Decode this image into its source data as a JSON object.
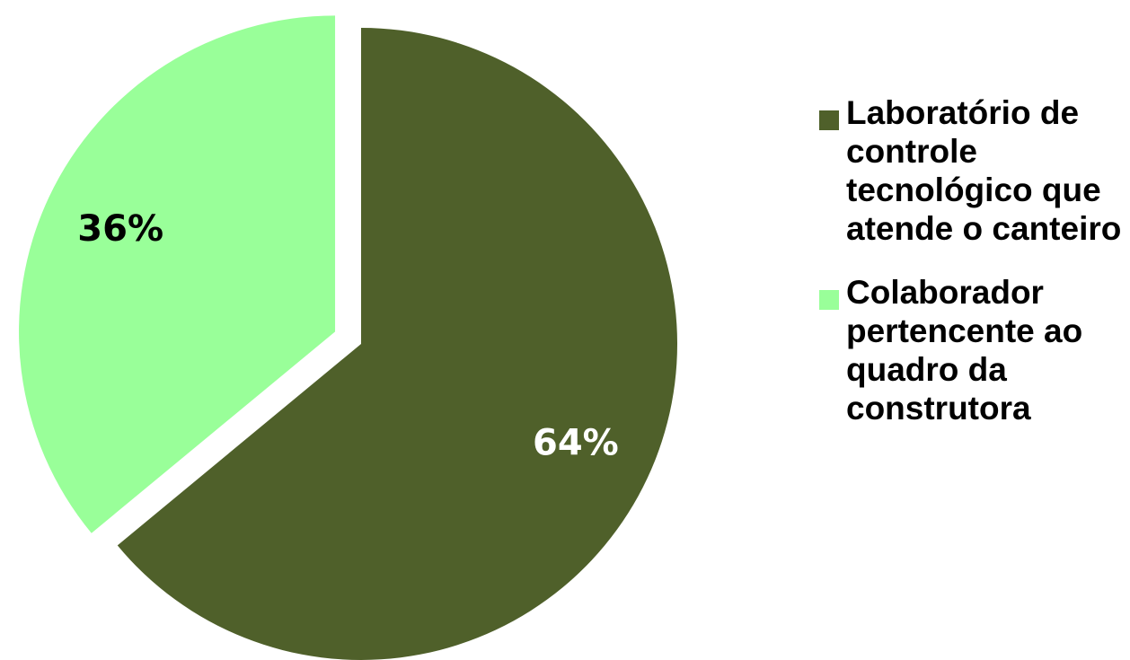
{
  "chart_data": {
    "type": "pie",
    "title": "",
    "slices": [
      {
        "label": "Laboratório de controle tecnológico que atende o canteiro",
        "value": 64,
        "data_label": "64%",
        "color": "#4f602a",
        "label_color": "#ffffff",
        "exploded": false
      },
      {
        "label": "Colaborador pertencente ao quadro da construtora",
        "value": 36,
        "data_label": "36%",
        "color": "#99ff99",
        "label_color": "#000000",
        "exploded": true
      }
    ],
    "legend": {
      "position": "right"
    }
  }
}
